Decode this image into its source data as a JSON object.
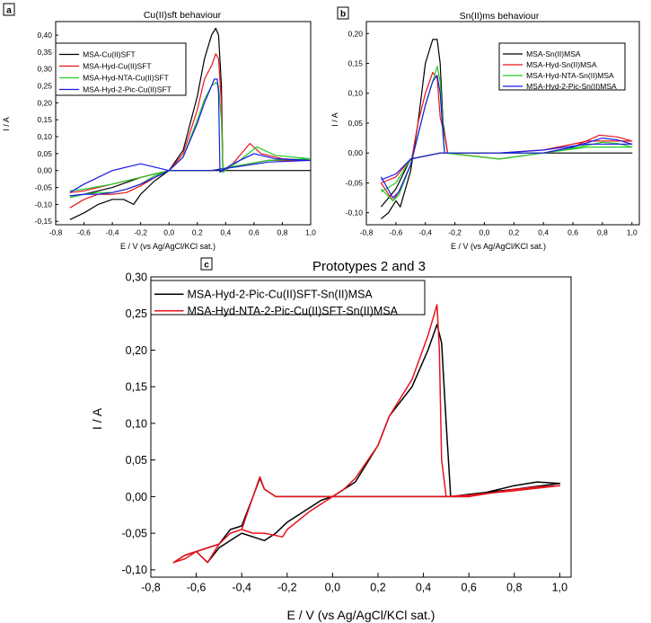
{
  "chart_data": [
    {
      "id": "a",
      "panel_label": "a",
      "type": "line",
      "title": "Cu(II)sft behaviour",
      "xlabel": "E / V (vs Ag/AgCl/KCl sat.)",
      "ylabel": "I / A",
      "xlim": [
        -0.8,
        1.0
      ],
      "ylim": [
        -0.16,
        0.44
      ],
      "xticks": [
        "-0,8",
        "-0,6",
        "-0,4",
        "-0,2",
        "0,0",
        "0,2",
        "0,4",
        "0,6",
        "0,8",
        "1,0"
      ],
      "xtick_values": [
        -0.8,
        -0.6,
        -0.4,
        -0.2,
        0.0,
        0.2,
        0.4,
        0.6,
        0.8,
        1.0
      ],
      "yticks": [
        "-0,15",
        "-0,10",
        "-0,05",
        "0,00",
        "0,05",
        "0,10",
        "0,15",
        "0,20",
        "0,25",
        "0,30",
        "0,35",
        "0,40"
      ],
      "ytick_values": [
        -0.15,
        -0.1,
        -0.05,
        0.0,
        0.05,
        0.1,
        0.15,
        0.2,
        0.25,
        0.3,
        0.35,
        0.4
      ],
      "legend_position": "top-left",
      "series": [
        {
          "name": "MSA-Cu(II)SFT",
          "color": "#000000",
          "x": [
            -0.7,
            -0.6,
            -0.5,
            -0.4,
            -0.32,
            -0.25,
            -0.2,
            -0.1,
            0.0,
            0.1,
            0.2,
            0.25,
            0.3,
            0.33,
            0.35,
            0.37,
            0.38,
            0.5,
            0.7,
            1.0,
            0.6,
            0.3,
            0.0,
            -0.2,
            -0.4,
            -0.6,
            -0.7
          ],
          "y": [
            -0.145,
            -0.125,
            -0.1,
            -0.085,
            -0.085,
            -0.1,
            -0.07,
            -0.03,
            0.0,
            0.06,
            0.22,
            0.33,
            0.4,
            0.42,
            0.4,
            0.25,
            0.0,
            0.0,
            0.0,
            0.0,
            0.0,
            0.0,
            0.0,
            -0.02,
            -0.05,
            -0.07,
            -0.075
          ]
        },
        {
          "name": "MSA-Hyd-Cu(II)SFT",
          "color": "#e8141c",
          "x": [
            -0.7,
            -0.6,
            -0.5,
            -0.4,
            -0.3,
            -0.2,
            -0.1,
            0.0,
            0.1,
            0.2,
            0.25,
            0.3,
            0.33,
            0.35,
            0.37,
            0.38,
            0.45,
            0.57,
            0.65,
            0.8,
            1.0,
            0.7,
            0.3,
            0.0,
            -0.2,
            -0.4,
            -0.6,
            -0.7
          ],
          "y": [
            -0.11,
            -0.085,
            -0.07,
            -0.07,
            -0.065,
            -0.045,
            -0.02,
            0.0,
            0.05,
            0.18,
            0.27,
            0.31,
            0.345,
            0.33,
            0.2,
            -0.005,
            0.02,
            0.08,
            0.05,
            0.035,
            0.03,
            0.03,
            0.0,
            0.0,
            -0.02,
            -0.04,
            -0.06,
            -0.065
          ]
        },
        {
          "name": "MSA-Hyd-NTA-Cu(II)SFT",
          "color": "#22cc22",
          "x": [
            -0.7,
            -0.6,
            -0.5,
            -0.4,
            -0.3,
            -0.2,
            -0.1,
            0.0,
            0.1,
            0.2,
            0.25,
            0.3,
            0.33,
            0.35,
            0.37,
            0.38,
            0.5,
            0.62,
            0.75,
            1.0,
            0.7,
            0.3,
            0.0,
            -0.2,
            -0.4,
            -0.6,
            -0.7
          ],
          "y": [
            -0.08,
            -0.07,
            -0.065,
            -0.065,
            -0.055,
            -0.04,
            -0.015,
            0.0,
            0.04,
            0.15,
            0.21,
            0.25,
            0.26,
            0.25,
            0.15,
            -0.005,
            0.03,
            0.07,
            0.045,
            0.035,
            0.03,
            0.0,
            0.0,
            -0.02,
            -0.04,
            -0.055,
            -0.06
          ]
        },
        {
          "name": "MSA-Hyd-2-Pic-Cu(II)SFT",
          "color": "#1a1ae6",
          "x": [
            -0.7,
            -0.6,
            -0.5,
            -0.4,
            -0.3,
            -0.2,
            -0.1,
            0.0,
            0.1,
            0.2,
            0.25,
            0.3,
            0.32,
            0.34,
            0.35,
            0.36,
            0.45,
            0.6,
            0.75,
            1.0,
            0.7,
            0.3,
            0.0,
            -0.2,
            -0.4,
            -0.6,
            -0.7
          ],
          "y": [
            -0.075,
            -0.07,
            -0.07,
            -0.065,
            -0.055,
            -0.04,
            -0.02,
            0.0,
            0.04,
            0.14,
            0.2,
            0.25,
            0.27,
            0.27,
            0.23,
            -0.005,
            0.02,
            0.05,
            0.035,
            0.03,
            0.025,
            0.0,
            0.0,
            0.02,
            0.0,
            -0.04,
            -0.065
          ]
        }
      ]
    },
    {
      "id": "b",
      "panel_label": "b",
      "type": "line",
      "title": "Sn(II)ms behaviour",
      "xlabel": "E / V (vs Ag/AgCl/KCl sat.)",
      "ylabel": "I / A",
      "xlim": [
        -0.8,
        1.05
      ],
      "ylim": [
        -0.12,
        0.22
      ],
      "xticks": [
        "-0,8",
        "-0,6",
        "-0,4",
        "-0,2",
        "0,0",
        "0,2",
        "0,4",
        "0,6",
        "0,8",
        "1,0"
      ],
      "xtick_values": [
        -0.8,
        -0.6,
        -0.4,
        -0.2,
        0.0,
        0.2,
        0.4,
        0.6,
        0.8,
        1.0
      ],
      "yticks": [
        "-0,10",
        "-0,05",
        "0,00",
        "0,05",
        "0,10",
        "0,15",
        "0,20"
      ],
      "ytick_values": [
        -0.1,
        -0.05,
        0.0,
        0.05,
        0.1,
        0.15,
        0.2
      ],
      "legend_position": "top-right",
      "series": [
        {
          "name": "MSA-Sn(II)MSA",
          "color": "#000000",
          "x": [
            -0.7,
            -0.65,
            -0.6,
            -0.57,
            -0.5,
            -0.45,
            -0.4,
            -0.35,
            -0.32,
            -0.3,
            -0.28,
            -0.25,
            -0.2,
            0.0,
            0.5,
            1.0,
            0.5,
            0.0,
            -0.3,
            -0.5,
            -0.6,
            -0.7
          ],
          "y": [
            -0.11,
            -0.1,
            -0.08,
            -0.09,
            -0.03,
            0.05,
            0.15,
            0.19,
            0.19,
            0.15,
            0.05,
            0.0,
            0.0,
            0.0,
            0.0,
            0.0,
            0.0,
            0.0,
            0.0,
            -0.01,
            -0.06,
            -0.09
          ]
        },
        {
          "name": "MSA-Hyd-Sn(II)MSA",
          "color": "#e8141c",
          "x": [
            -0.7,
            -0.62,
            -0.58,
            -0.5,
            -0.45,
            -0.4,
            -0.35,
            -0.32,
            -0.3,
            -0.28,
            -0.26,
            -0.25,
            0.1,
            0.4,
            0.6,
            0.78,
            0.9,
            1.0,
            0.7,
            0.4,
            0.1,
            -0.3,
            -0.5,
            -0.6,
            -0.7
          ],
          "y": [
            -0.05,
            -0.08,
            -0.065,
            -0.02,
            0.05,
            0.1,
            0.135,
            0.125,
            0.06,
            0.04,
            0.02,
            0.0,
            -0.01,
            0.0,
            0.01,
            0.03,
            0.027,
            0.02,
            0.02,
            0.005,
            0.0,
            0.0,
            -0.01,
            -0.04,
            -0.05
          ]
        },
        {
          "name": "MSA-Hyd-NTA-Sn(II)MSA",
          "color": "#22cc22",
          "x": [
            -0.7,
            -0.62,
            -0.58,
            -0.5,
            -0.45,
            -0.4,
            -0.35,
            -0.32,
            -0.3,
            -0.28,
            -0.27,
            0.1,
            0.4,
            0.6,
            0.8,
            0.9,
            1.0,
            0.7,
            0.4,
            0.1,
            -0.3,
            -0.5,
            -0.6,
            -0.7
          ],
          "y": [
            -0.06,
            -0.08,
            -0.07,
            -0.02,
            0.03,
            0.08,
            0.12,
            0.145,
            0.12,
            0.04,
            0.0,
            -0.01,
            0.0,
            0.008,
            0.018,
            0.016,
            0.01,
            0.01,
            0.0,
            0.0,
            0.0,
            -0.01,
            -0.05,
            -0.065
          ]
        },
        {
          "name": "MSA-Hyd-2-Pic-Sn(II)MSA",
          "color": "#1a1ae6",
          "x": [
            -0.7,
            -0.62,
            -0.58,
            -0.5,
            -0.45,
            -0.4,
            -0.35,
            -0.32,
            -0.3,
            -0.28,
            -0.27,
            0.1,
            0.4,
            0.6,
            0.8,
            0.9,
            1.0,
            0.7,
            0.4,
            0.1,
            -0.3,
            -0.5,
            -0.6,
            -0.7
          ],
          "y": [
            -0.04,
            -0.075,
            -0.065,
            -0.02,
            0.03,
            0.08,
            0.12,
            0.13,
            0.1,
            0.03,
            0.0,
            0.0,
            0.0,
            0.01,
            0.025,
            0.022,
            0.015,
            0.015,
            0.005,
            0.0,
            0.0,
            -0.01,
            -0.035,
            -0.045
          ]
        }
      ]
    },
    {
      "id": "c",
      "panel_label": "c",
      "type": "line",
      "title": "Prototypes 2 and 3",
      "xlabel": "E / V (vs Ag/AgCl/KCl sat.)",
      "ylabel": "I / A",
      "xlim": [
        -0.8,
        1.05
      ],
      "ylim": [
        -0.11,
        0.3
      ],
      "xticks": [
        "-0,8",
        "-0,6",
        "-0,4",
        "-0,2",
        "0,0",
        "0,2",
        "0,4",
        "0,6",
        "0,8",
        "1,0"
      ],
      "xtick_values": [
        -0.8,
        -0.6,
        -0.4,
        -0.2,
        0.0,
        0.2,
        0.4,
        0.6,
        0.8,
        1.0
      ],
      "yticks": [
        "-0,10",
        "-0,05",
        "0,00",
        "0,05",
        "0,10",
        "0,15",
        "0,20",
        "0,25",
        "0,30"
      ],
      "ytick_values": [
        -0.1,
        -0.05,
        0.0,
        0.05,
        0.1,
        0.15,
        0.2,
        0.25,
        0.3
      ],
      "legend_position": "top-left",
      "series": [
        {
          "name": "MSA-Hyd-2-Pic-Cu(II)SFT-Sn(II)MSA",
          "color": "#000000",
          "x": [
            0.35,
            0.6,
            0.8,
            0.9,
            1.0,
            0.8,
            0.6,
            0.52,
            0.5,
            0.48,
            0.46,
            0.42,
            0.35,
            0.25,
            0.2,
            0.1,
            0.0,
            -0.05,
            -0.1,
            -0.2,
            -0.25,
            -0.3,
            -0.35,
            -0.4,
            -0.45,
            -0.5,
            -0.55,
            -0.6,
            -0.65,
            -0.7,
            -0.65,
            -0.6,
            -0.55,
            -0.5,
            -0.45,
            -0.4,
            -0.35,
            -0.32,
            -0.3,
            -0.25,
            -0.2,
            -0.1,
            0.0,
            0.1,
            0.2,
            0.35
          ],
          "y": [
            0.0,
            0.0,
            0.015,
            0.02,
            0.018,
            0.01,
            0.003,
            0.0,
            0.1,
            0.21,
            0.235,
            0.2,
            0.15,
            0.11,
            0.07,
            0.02,
            0.0,
            -0.005,
            -0.015,
            -0.035,
            -0.05,
            -0.06,
            -0.055,
            -0.05,
            -0.06,
            -0.07,
            -0.09,
            -0.075,
            -0.08,
            -0.09,
            -0.08,
            -0.075,
            -0.07,
            -0.065,
            -0.045,
            -0.04,
            0.0,
            0.025,
            0.01,
            0.0,
            0.0,
            0.0,
            0.0,
            0.0,
            0.0,
            0.0
          ]
        },
        {
          "name": "MSA-Hyd-NTA-2-Pic-Cu(II)SFT-Sn(II)MSA",
          "color": "#e8141c",
          "x": [
            0.35,
            0.6,
            0.8,
            0.9,
            1.0,
            0.8,
            0.6,
            0.5,
            0.48,
            0.47,
            0.46,
            0.42,
            0.35,
            0.25,
            0.2,
            0.1,
            0.05,
            0.0,
            -0.1,
            -0.2,
            -0.22,
            -0.3,
            -0.35,
            -0.4,
            -0.45,
            -0.5,
            -0.55,
            -0.6,
            -0.65,
            -0.7,
            -0.65,
            -0.6,
            -0.55,
            -0.5,
            -0.45,
            -0.4,
            -0.35,
            -0.32,
            -0.3,
            -0.25,
            -0.2,
            -0.1,
            0.0,
            0.1,
            0.2,
            0.35
          ],
          "y": [
            0.0,
            0.0,
            0.01,
            0.013,
            0.015,
            0.008,
            0.002,
            0.0,
            0.05,
            0.2,
            0.262,
            0.22,
            0.16,
            0.11,
            0.07,
            0.025,
            0.01,
            0.0,
            -0.02,
            -0.045,
            -0.055,
            -0.05,
            -0.05,
            -0.045,
            -0.05,
            -0.065,
            -0.09,
            -0.075,
            -0.085,
            -0.09,
            -0.08,
            -0.075,
            -0.07,
            -0.065,
            -0.05,
            -0.045,
            -0.0,
            0.027,
            0.01,
            0.0,
            0.0,
            0.0,
            0.0,
            0.0,
            0.0,
            0.0
          ]
        }
      ]
    }
  ]
}
